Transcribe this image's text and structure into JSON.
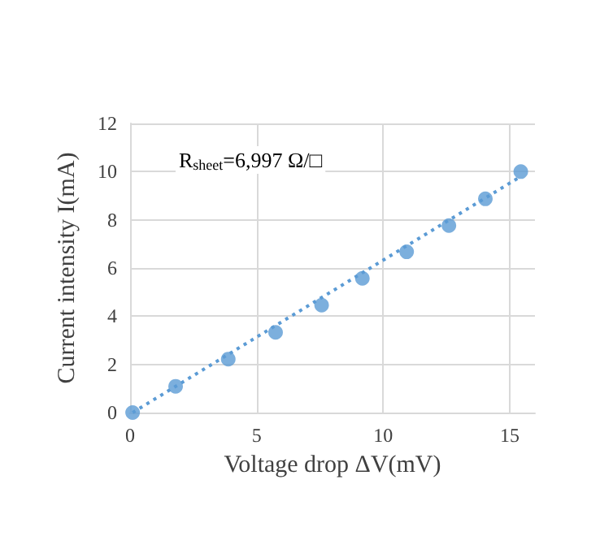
{
  "chart_data": {
    "type": "scatter",
    "xlabel": "Voltage drop ΔV(mV)",
    "ylabel": "Current intensity I(mA)",
    "annotations": [
      "R$_{sheet}$=6,997 Ω/□"
    ],
    "x": [
      0.1,
      1.8,
      3.88,
      5.75,
      7.57,
      9.18,
      10.93,
      12.6,
      14.04,
      15.44
    ],
    "series": [
      {
        "color": "#5b9bd5",
        "values": [
          0,
          1.09,
          2.22,
          3.33,
          4.46,
          5.57,
          6.67,
          7.76,
          8.87,
          10
        ]
      },
      {
        "type": "line",
        "color": "#5b9bd5",
        "line_style": "dotted",
        "marker": "none",
        "x": [
          0.1,
          15.44
        ],
        "values": [
          0,
          9.8
        ]
      }
    ],
    "marker": "circle",
    "xlim": [
      0,
      16
    ],
    "xticks": [
      0,
      5,
      10,
      15
    ],
    "ylim": [
      0,
      12
    ],
    "yticks": [
      0,
      2,
      4,
      6,
      8,
      10,
      12
    ],
    "grid": true
  }
}
